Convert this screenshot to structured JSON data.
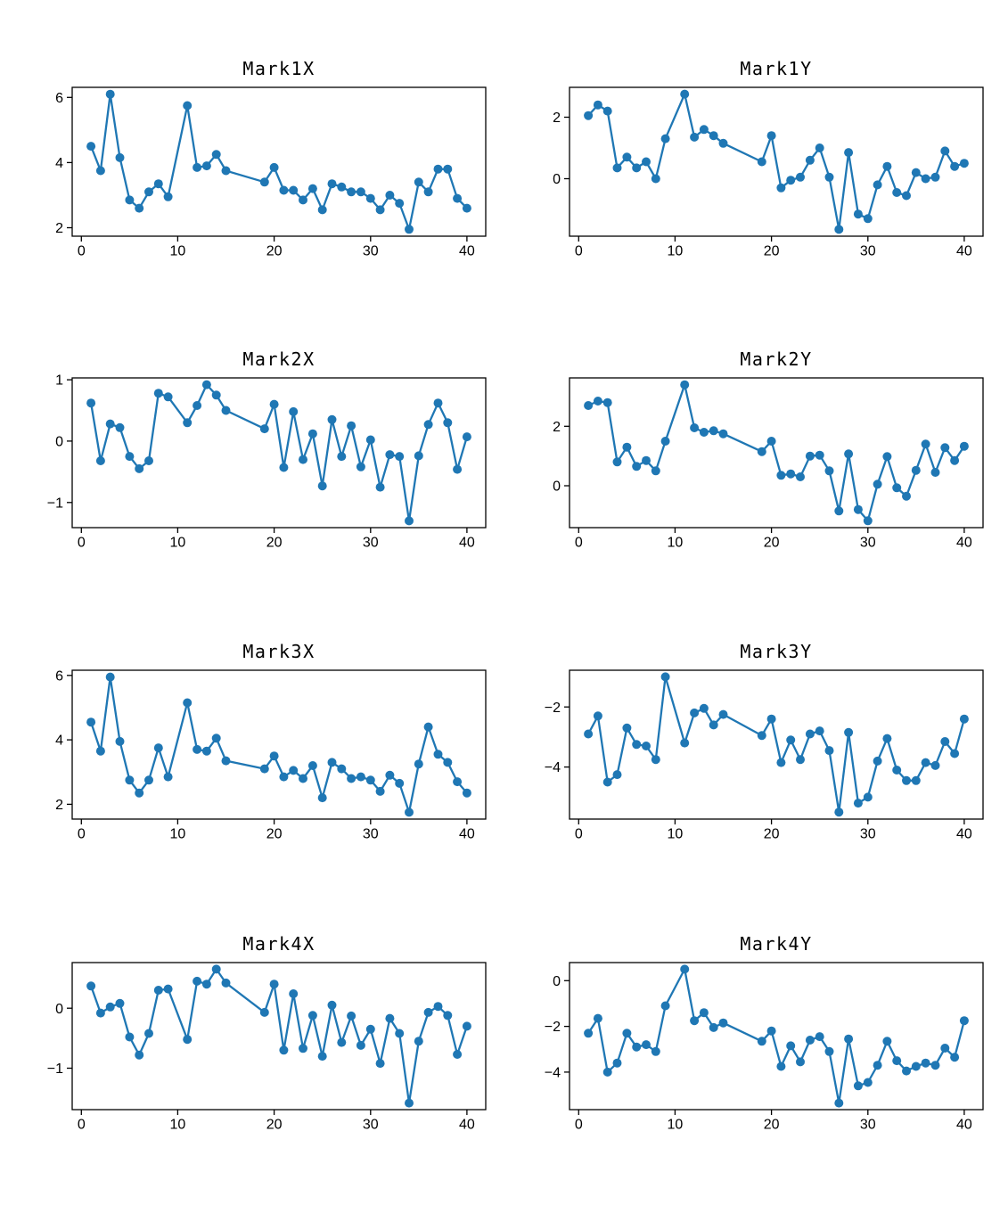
{
  "figure": {
    "background": "#ffffff",
    "accent_color": "#1f77b4",
    "axis_color": "#000000",
    "text_color": "#000000"
  },
  "chart_data": [
    {
      "type": "line",
      "title": "Mark1X",
      "x": [
        1,
        2,
        3,
        4,
        5,
        6,
        7,
        8,
        9,
        11,
        12,
        13,
        14,
        15,
        19,
        20,
        21,
        22,
        23,
        24,
        25,
        26,
        27,
        28,
        29,
        30,
        31,
        32,
        33,
        34,
        35,
        36,
        37,
        38,
        39,
        40
      ],
      "y": [
        4.5,
        3.75,
        6.1,
        4.15,
        2.85,
        2.6,
        3.1,
        3.35,
        2.95,
        5.75,
        3.85,
        3.9,
        4.25,
        3.75,
        3.4,
        3.85,
        3.15,
        3.15,
        2.85,
        3.2,
        2.55,
        3.35,
        3.25,
        3.1,
        3.1,
        2.9,
        2.55,
        3.0,
        2.75,
        1.95,
        3.4,
        3.1,
        3.8,
        3.8,
        2.9,
        2.6
      ],
      "xlim": [
        -0.95,
        41.95
      ],
      "ylim": [
        1.74,
        6.31
      ],
      "xticks": [
        0,
        10,
        20,
        30,
        40
      ],
      "yticks": [
        2,
        4,
        6
      ],
      "marker": "circle",
      "grid": false,
      "legend": null
    },
    {
      "type": "line",
      "title": "Mark1Y",
      "x": [
        1,
        2,
        3,
        4,
        5,
        6,
        7,
        8,
        9,
        11,
        12,
        13,
        14,
        15,
        19,
        20,
        21,
        22,
        23,
        24,
        25,
        26,
        27,
        28,
        29,
        30,
        31,
        32,
        33,
        34,
        35,
        36,
        37,
        38,
        39,
        40
      ],
      "y": [
        2.05,
        2.4,
        2.2,
        0.35,
        0.7,
        0.35,
        0.55,
        0.0,
        1.3,
        2.75,
        1.35,
        1.6,
        1.4,
        1.15,
        0.55,
        1.4,
        -0.3,
        -0.05,
        0.05,
        0.6,
        1.0,
        0.05,
        -1.65,
        0.85,
        -1.15,
        -1.3,
        -0.2,
        0.4,
        -0.45,
        -0.55,
        0.2,
        0.0,
        0.05,
        0.9,
        0.4,
        0.5
      ],
      "xlim": [
        -0.95,
        41.95
      ],
      "ylim": [
        -1.87,
        2.97
      ],
      "xticks": [
        0,
        10,
        20,
        30,
        40
      ],
      "yticks": [
        0,
        2
      ],
      "marker": "circle",
      "grid": false,
      "legend": null
    },
    {
      "type": "line",
      "title": "Mark2X",
      "x": [
        1,
        2,
        3,
        4,
        5,
        6,
        7,
        8,
        9,
        11,
        12,
        13,
        14,
        15,
        19,
        20,
        21,
        22,
        23,
        24,
        25,
        26,
        27,
        28,
        29,
        30,
        31,
        32,
        33,
        34,
        35,
        36,
        37,
        38,
        39,
        40
      ],
      "y": [
        0.62,
        -0.32,
        0.28,
        0.22,
        -0.25,
        -0.45,
        -0.32,
        0.78,
        0.72,
        0.3,
        0.58,
        0.92,
        0.75,
        0.5,
        0.2,
        0.6,
        -0.43,
        0.48,
        -0.3,
        0.12,
        -0.73,
        0.35,
        -0.25,
        0.25,
        -0.42,
        0.02,
        -0.75,
        -0.22,
        -0.25,
        -1.3,
        -0.24,
        0.27,
        0.62,
        0.3,
        -0.46,
        0.07
      ],
      "xlim": [
        -0.95,
        41.95
      ],
      "ylim": [
        -1.41,
        1.03
      ],
      "xticks": [
        0,
        10,
        20,
        30,
        40
      ],
      "yticks": [
        -1,
        0,
        1
      ],
      "marker": "circle",
      "grid": false,
      "legend": null
    },
    {
      "type": "line",
      "title": "Mark2Y",
      "x": [
        1,
        2,
        3,
        4,
        5,
        6,
        7,
        8,
        9,
        11,
        12,
        13,
        14,
        15,
        19,
        20,
        21,
        22,
        23,
        24,
        25,
        26,
        27,
        28,
        29,
        30,
        31,
        32,
        33,
        34,
        35,
        36,
        37,
        38,
        39,
        40
      ],
      "y": [
        2.7,
        2.85,
        2.8,
        0.8,
        1.3,
        0.65,
        0.85,
        0.5,
        1.5,
        3.4,
        1.95,
        1.8,
        1.85,
        1.75,
        1.15,
        1.5,
        0.35,
        0.4,
        0.3,
        1.0,
        1.03,
        0.5,
        -0.85,
        1.07,
        -0.8,
        -1.18,
        0.05,
        0.98,
        -0.07,
        -0.35,
        0.52,
        1.4,
        0.45,
        1.28,
        0.85,
        1.33
      ],
      "xlim": [
        -0.95,
        41.95
      ],
      "ylim": [
        -1.41,
        3.63
      ],
      "xticks": [
        0,
        10,
        20,
        30,
        40
      ],
      "yticks": [
        0,
        2
      ],
      "marker": "circle",
      "grid": false,
      "legend": null
    },
    {
      "type": "line",
      "title": "Mark3X",
      "x": [
        1,
        2,
        3,
        4,
        5,
        6,
        7,
        8,
        9,
        11,
        12,
        13,
        14,
        15,
        19,
        20,
        21,
        22,
        23,
        24,
        25,
        26,
        27,
        28,
        29,
        30,
        31,
        32,
        33,
        34,
        35,
        36,
        37,
        38,
        39,
        40
      ],
      "y": [
        4.55,
        3.65,
        5.95,
        3.95,
        2.75,
        2.35,
        2.75,
        3.75,
        2.85,
        5.15,
        3.7,
        3.65,
        4.05,
        3.35,
        3.1,
        3.5,
        2.85,
        3.05,
        2.8,
        3.2,
        2.2,
        3.3,
        3.1,
        2.8,
        2.85,
        2.75,
        2.4,
        2.9,
        2.65,
        1.75,
        3.25,
        4.4,
        3.55,
        3.3,
        2.7,
        2.35
      ],
      "xlim": [
        -0.95,
        41.95
      ],
      "ylim": [
        1.54,
        6.16
      ],
      "xticks": [
        0,
        10,
        20,
        30,
        40
      ],
      "yticks": [
        2,
        4,
        6
      ],
      "marker": "circle",
      "grid": false,
      "legend": null
    },
    {
      "type": "line",
      "title": "Mark3Y",
      "x": [
        1,
        2,
        3,
        4,
        5,
        6,
        7,
        8,
        9,
        11,
        12,
        13,
        14,
        15,
        19,
        20,
        21,
        22,
        23,
        24,
        25,
        26,
        27,
        28,
        29,
        30,
        31,
        32,
        33,
        34,
        35,
        36,
        37,
        38,
        39,
        40
      ],
      "y": [
        -2.9,
        -2.3,
        -4.5,
        -4.25,
        -2.7,
        -3.25,
        -3.3,
        -3.75,
        -1.0,
        -3.2,
        -2.2,
        -2.05,
        -2.6,
        -2.25,
        -2.95,
        -2.4,
        -3.85,
        -3.1,
        -3.75,
        -2.9,
        -2.8,
        -3.45,
        -5.5,
        -2.85,
        -5.2,
        -5.0,
        -3.8,
        -3.05,
        -4.1,
        -4.45,
        -4.45,
        -3.85,
        -3.95,
        -3.15,
        -3.55,
        -2.4
      ],
      "xlim": [
        -0.95,
        41.95
      ],
      "ylim": [
        -5.73,
        -0.78
      ],
      "xticks": [
        0,
        10,
        20,
        30,
        40
      ],
      "yticks": [
        -4,
        -2
      ],
      "marker": "circle",
      "grid": false,
      "legend": null
    },
    {
      "type": "line",
      "title": "Mark4X",
      "x": [
        1,
        2,
        3,
        4,
        5,
        6,
        7,
        8,
        9,
        11,
        12,
        13,
        14,
        15,
        19,
        20,
        21,
        22,
        23,
        24,
        25,
        26,
        27,
        28,
        29,
        30,
        31,
        32,
        33,
        34,
        35,
        36,
        37,
        38,
        39,
        40
      ],
      "y": [
        0.37,
        -0.08,
        0.02,
        0.08,
        -0.48,
        -0.78,
        -0.42,
        0.3,
        0.32,
        -0.52,
        0.45,
        0.4,
        0.65,
        0.42,
        -0.07,
        0.4,
        -0.7,
        0.24,
        -0.67,
        -0.12,
        -0.8,
        0.05,
        -0.57,
        -0.13,
        -0.62,
        -0.35,
        -0.92,
        -0.17,
        -0.42,
        -1.58,
        -0.55,
        -0.07,
        0.03,
        -0.12,
        -0.77,
        -0.3
      ],
      "xlim": [
        -0.95,
        41.95
      ],
      "ylim": [
        -1.69,
        0.76
      ],
      "xticks": [
        0,
        10,
        20,
        30,
        40
      ],
      "yticks": [
        -1,
        0
      ],
      "marker": "circle",
      "grid": false,
      "legend": null
    },
    {
      "type": "line",
      "title": "Mark4Y",
      "x": [
        1,
        2,
        3,
        4,
        5,
        6,
        7,
        8,
        9,
        11,
        12,
        13,
        14,
        15,
        19,
        20,
        21,
        22,
        23,
        24,
        25,
        26,
        27,
        28,
        29,
        30,
        31,
        32,
        33,
        34,
        35,
        36,
        37,
        38,
        39,
        40
      ],
      "y": [
        -2.3,
        -1.65,
        -4.0,
        -3.6,
        -2.3,
        -2.9,
        -2.8,
        -3.1,
        -1.1,
        0.5,
        -1.75,
        -1.4,
        -2.05,
        -1.85,
        -2.65,
        -2.2,
        -3.75,
        -2.85,
        -3.55,
        -2.6,
        -2.45,
        -3.1,
        -5.35,
        -2.55,
        -4.6,
        -4.45,
        -3.7,
        -2.65,
        -3.5,
        -3.95,
        -3.75,
        -3.6,
        -3.7,
        -2.95,
        -3.35,
        -1.75
      ],
      "xlim": [
        -0.95,
        41.95
      ],
      "ylim": [
        -5.64,
        0.79
      ],
      "xticks": [
        0,
        10,
        20,
        30,
        40
      ],
      "yticks": [
        -4,
        -2,
        0
      ],
      "marker": "circle",
      "grid": false,
      "legend": null
    }
  ]
}
